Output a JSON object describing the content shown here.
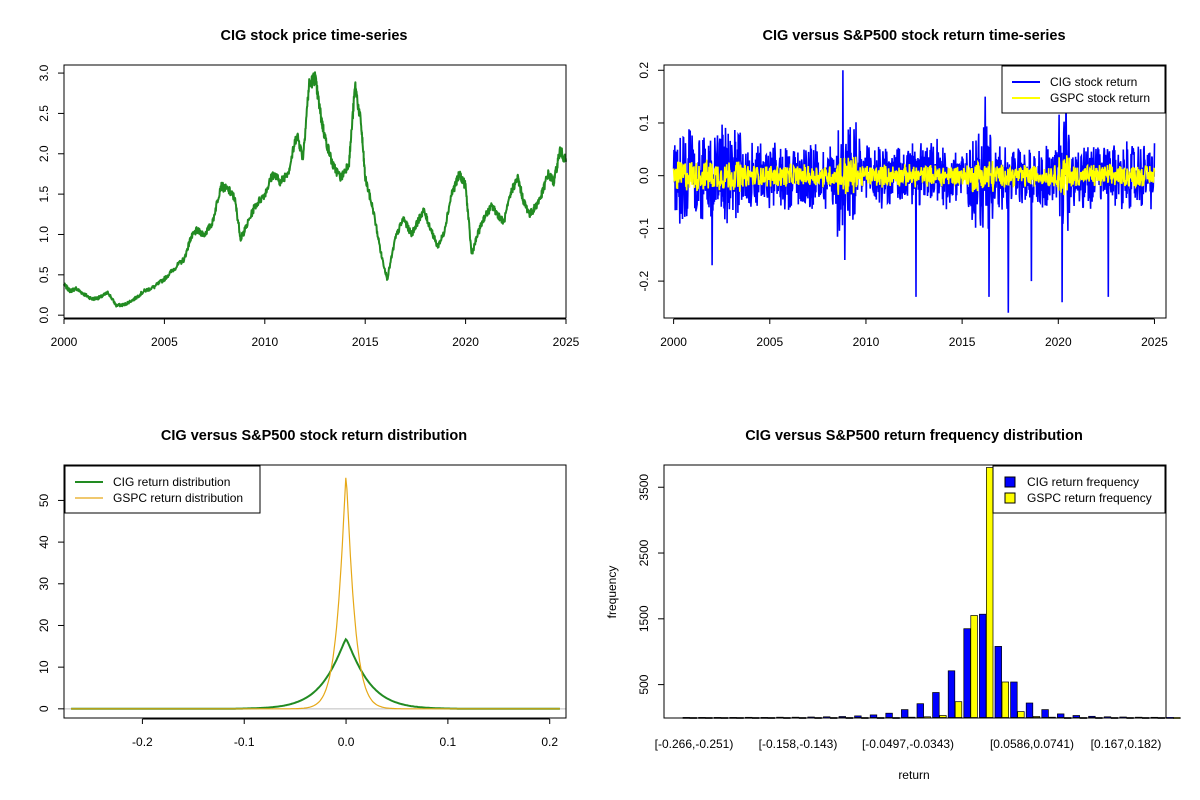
{
  "chart_data": [
    {
      "id": "price",
      "type": "line",
      "title": "CIG stock price time-series",
      "xlabel": "",
      "ylabel": "",
      "xlim": [
        2000,
        2025
      ],
      "ylim": [
        0,
        3
      ],
      "xticks": [
        "2000",
        "2005",
        "2010",
        "2015",
        "2020",
        "2025"
      ],
      "yticks": [
        "0.0",
        "0.5",
        "1.0",
        "1.5",
        "2.0",
        "2.5",
        "3.0"
      ],
      "series": [
        {
          "name": "CIG stock price",
          "color": "#228B22",
          "points": [
            [
              2000.0,
              0.38
            ],
            [
              2000.3,
              0.3
            ],
            [
              2000.6,
              0.33
            ],
            [
              2001.0,
              0.26
            ],
            [
              2001.4,
              0.2
            ],
            [
              2001.8,
              0.22
            ],
            [
              2002.2,
              0.28
            ],
            [
              2002.6,
              0.12
            ],
            [
              2003.0,
              0.13
            ],
            [
              2003.5,
              0.2
            ],
            [
              2004.0,
              0.3
            ],
            [
              2004.5,
              0.35
            ],
            [
              2005.0,
              0.45
            ],
            [
              2005.5,
              0.58
            ],
            [
              2006.0,
              0.7
            ],
            [
              2006.3,
              0.95
            ],
            [
              2006.6,
              1.05
            ],
            [
              2007.0,
              1.0
            ],
            [
              2007.4,
              1.15
            ],
            [
              2007.8,
              1.6
            ],
            [
              2008.2,
              1.55
            ],
            [
              2008.5,
              1.45
            ],
            [
              2008.8,
              0.95
            ],
            [
              2009.0,
              1.05
            ],
            [
              2009.5,
              1.35
            ],
            [
              2010.0,
              1.5
            ],
            [
              2010.4,
              1.75
            ],
            [
              2010.8,
              1.65
            ],
            [
              2011.2,
              1.8
            ],
            [
              2011.6,
              2.25
            ],
            [
              2011.9,
              1.95
            ],
            [
              2012.2,
              2.85
            ],
            [
              2012.5,
              2.95
            ],
            [
              2012.8,
              2.45
            ],
            [
              2013.0,
              2.2
            ],
            [
              2013.4,
              1.85
            ],
            [
              2013.8,
              1.7
            ],
            [
              2014.2,
              1.9
            ],
            [
              2014.5,
              2.85
            ],
            [
              2014.8,
              2.35
            ],
            [
              2015.0,
              1.7
            ],
            [
              2015.4,
              1.3
            ],
            [
              2015.8,
              0.75
            ],
            [
              2016.1,
              0.45
            ],
            [
              2016.5,
              0.95
            ],
            [
              2016.9,
              1.2
            ],
            [
              2017.3,
              1.0
            ],
            [
              2017.6,
              1.15
            ],
            [
              2017.9,
              1.3
            ],
            [
              2018.3,
              1.05
            ],
            [
              2018.6,
              0.85
            ],
            [
              2018.9,
              1.0
            ],
            [
              2019.3,
              1.5
            ],
            [
              2019.7,
              1.75
            ],
            [
              2020.0,
              1.6
            ],
            [
              2020.3,
              0.75
            ],
            [
              2020.6,
              1.0
            ],
            [
              2020.9,
              1.2
            ],
            [
              2021.3,
              1.35
            ],
            [
              2021.6,
              1.25
            ],
            [
              2021.9,
              1.15
            ],
            [
              2022.3,
              1.55
            ],
            [
              2022.6,
              1.7
            ],
            [
              2022.9,
              1.4
            ],
            [
              2023.2,
              1.25
            ],
            [
              2023.5,
              1.35
            ],
            [
              2023.8,
              1.5
            ],
            [
              2024.1,
              1.75
            ],
            [
              2024.4,
              1.65
            ],
            [
              2024.7,
              2.05
            ],
            [
              2025.0,
              1.9
            ]
          ]
        }
      ]
    },
    {
      "id": "returns",
      "type": "line",
      "title": "CIG versus S&P500 stock return time-series",
      "xlabel": "",
      "ylabel": "",
      "xlim": [
        2000,
        2025
      ],
      "ylim": [
        -0.27,
        0.2
      ],
      "xticks": [
        "2000",
        "2005",
        "2010",
        "2015",
        "2020",
        "2025"
      ],
      "yticks": [
        "-0.2",
        "-0.1",
        "0.0",
        "0.1",
        "0.2"
      ],
      "legend_position": "top-right",
      "series": [
        {
          "name": "CIG stock return",
          "color": "#0000FF"
        },
        {
          "name": "GSPC stock return",
          "color": "#FFFF00"
        }
      ]
    },
    {
      "id": "density",
      "type": "line",
      "title": "CIG versus S&P500 stock return distribution",
      "xlabel": "",
      "ylabel": "",
      "xlim": [
        -0.27,
        0.21
      ],
      "ylim": [
        0,
        57
      ],
      "xticks": [
        "-0.2",
        "-0.1",
        "0.0",
        "0.1",
        "0.2"
      ],
      "yticks": [
        "0",
        "10",
        "20",
        "30",
        "40",
        "50"
      ],
      "legend_position": "top-left",
      "series": [
        {
          "name": "CIG return distribution",
          "color": "#228B22",
          "peak": 16.8,
          "center": 0.0,
          "scale": 0.022,
          "shape": "laplace"
        },
        {
          "name": "GSPC return distribution",
          "color": "#E6A817",
          "peak": 56.5,
          "center": 0.0,
          "scale": 0.0085,
          "shape": "laplace"
        }
      ]
    },
    {
      "id": "frequency",
      "type": "bar",
      "title": "CIG versus S&P500 return frequency distribution",
      "xlabel": "return",
      "ylabel": "frequency",
      "ylim": [
        0,
        3800
      ],
      "yticks": [
        "500",
        "1500",
        "2500",
        "3500"
      ],
      "xtick_labels": [
        "[-0.266,-0.251)",
        "[-0.158,-0.143)",
        "[-0.0497,-0.0343)",
        "[0.0586,0.0741)",
        "[0.167,0.182)"
      ],
      "legend_position": "top-right",
      "series": [
        {
          "name": "CIG return frequency",
          "color": "#0000FF",
          "values": [
            2,
            1,
            1,
            2,
            3,
            2,
            4,
            5,
            8,
            10,
            15,
            25,
            40,
            65,
            120,
            210,
            380,
            710,
            1350,
            1570,
            1080,
            540,
            220,
            120,
            55,
            30,
            18,
            10,
            8,
            5,
            3,
            2
          ]
        },
        {
          "name": "GSPC return frequency",
          "color": "#FFFF00",
          "values": [
            0,
            0,
            0,
            0,
            0,
            0,
            0,
            0,
            0,
            0,
            0,
            0,
            0,
            0,
            5,
            10,
            30,
            240,
            1550,
            3800,
            540,
            90,
            15,
            5,
            0,
            0,
            0,
            0,
            0,
            0,
            0,
            0
          ]
        }
      ]
    }
  ]
}
